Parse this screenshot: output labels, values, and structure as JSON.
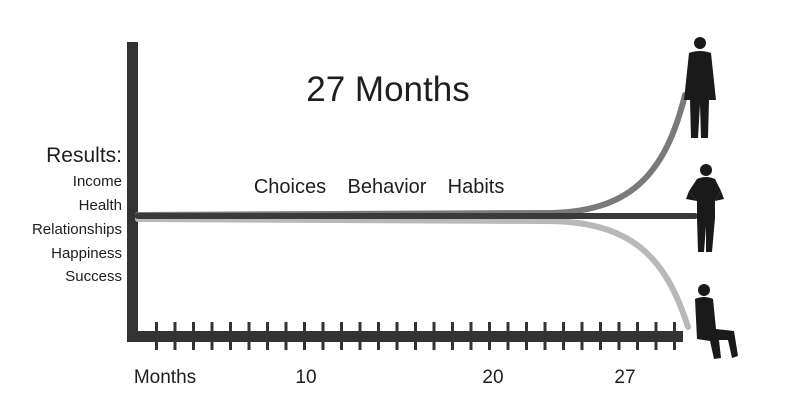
{
  "title": "27 Months",
  "results": {
    "heading": "Results:",
    "items": [
      "Income",
      "Health",
      "Relationships",
      "Happiness",
      "Success"
    ]
  },
  "timeline_words": [
    "Choices",
    "Behavior",
    "Habits"
  ],
  "x_axis": {
    "label": "Months",
    "tick_labels": [
      "10",
      "20",
      "27"
    ]
  },
  "paths": [
    {
      "outcome": "up",
      "color": "#7a7a7a"
    },
    {
      "outcome": "steady",
      "color": "#3a3a3a"
    },
    {
      "outcome": "down",
      "color": "#b8b8b8"
    }
  ],
  "figures": [
    {
      "icon": "standing-man-icon"
    },
    {
      "icon": "hands-on-hips-man-icon"
    },
    {
      "icon": "sitting-man-icon"
    }
  ],
  "colors": {
    "axis": "#333333",
    "text": "#1e1e1e"
  }
}
